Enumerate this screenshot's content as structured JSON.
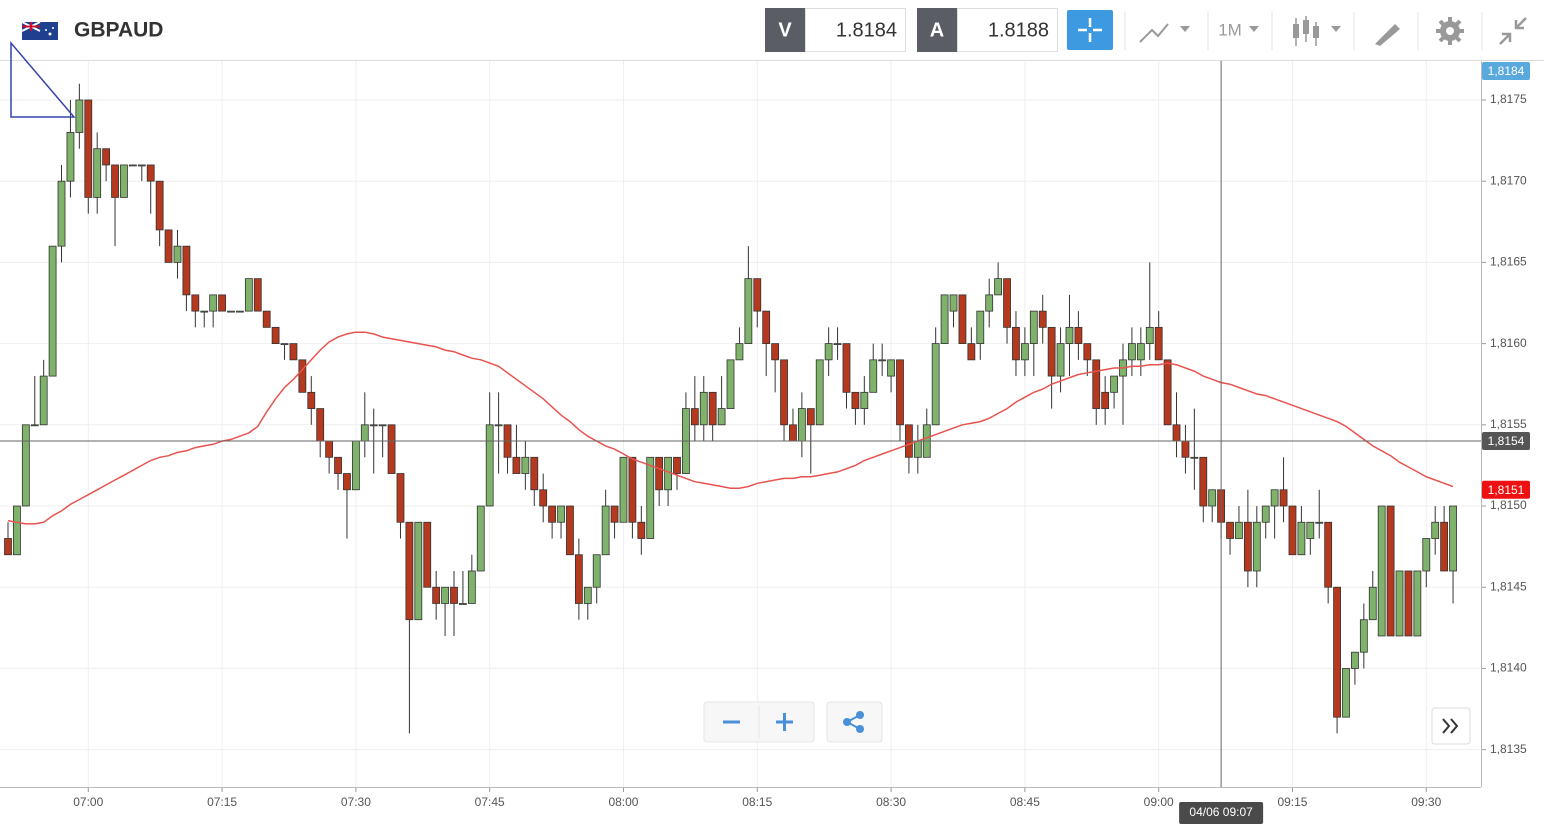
{
  "header": {
    "symbol": "GBPAUD",
    "bid_label": "V",
    "bid": "1.8184",
    "ask_label": "A",
    "ask": "1.8188",
    "timeframe": "1M"
  },
  "chart_data": {
    "type": "candlestick",
    "x": [
      "06:51",
      "06:52",
      "06:53",
      "06:54",
      "06:55",
      "06:56",
      "06:57",
      "06:58",
      "06:59",
      "07:00",
      "07:01",
      "07:02",
      "07:03",
      "07:04",
      "07:05",
      "07:06",
      "07:07",
      "07:08",
      "07:09",
      "07:10",
      "07:11",
      "07:12",
      "07:13",
      "07:14",
      "07:15",
      "07:16",
      "07:17",
      "07:18",
      "07:19",
      "07:20",
      "07:21",
      "07:22",
      "07:23",
      "07:24",
      "07:25",
      "07:26",
      "07:27",
      "07:28",
      "07:29",
      "07:30",
      "07:31",
      "07:32",
      "07:33",
      "07:34",
      "07:35",
      "07:36",
      "07:37",
      "07:38",
      "07:39",
      "07:40",
      "07:41",
      "07:42",
      "07:43",
      "07:44",
      "07:45",
      "07:46",
      "07:47",
      "07:48",
      "07:49",
      "07:50",
      "07:51",
      "07:52",
      "07:53",
      "07:54",
      "07:55",
      "07:56",
      "07:57",
      "07:58",
      "07:59",
      "08:00",
      "08:01",
      "08:02",
      "08:03",
      "08:04",
      "08:05",
      "08:06",
      "08:07",
      "08:08",
      "08:09",
      "08:10",
      "08:11",
      "08:12",
      "08:13",
      "08:14",
      "08:15",
      "08:16",
      "08:17",
      "08:18",
      "08:19",
      "08:20",
      "08:21",
      "08:22",
      "08:23",
      "08:24",
      "08:25",
      "08:26",
      "08:27",
      "08:28",
      "08:29",
      "08:30",
      "08:31",
      "08:32",
      "08:33",
      "08:34",
      "08:35",
      "08:36",
      "08:37",
      "08:38",
      "08:39",
      "08:40",
      "08:41",
      "08:42",
      "08:43",
      "08:44",
      "08:45",
      "08:46",
      "08:47",
      "08:48",
      "08:49",
      "08:50",
      "08:51",
      "08:52",
      "08:53",
      "08:54",
      "08:55",
      "08:56",
      "08:57",
      "08:58",
      "08:59",
      "09:00",
      "09:01",
      "09:02",
      "09:03",
      "09:04",
      "09:05",
      "09:06",
      "09:07",
      "09:08",
      "09:09",
      "09:10",
      "09:11",
      "09:12",
      "09:13",
      "09:14",
      "09:15",
      "09:16",
      "09:17",
      "09:18",
      "09:19",
      "09:20",
      "09:21",
      "09:22",
      "09:23",
      "09:24",
      "09:25",
      "09:26",
      "09:27",
      "09:28",
      "09:29",
      "09:30",
      "09:31",
      "09:32",
      "09:33"
    ],
    "open": [
      1.8148,
      1.8147,
      1.815,
      1.8155,
      1.8155,
      1.8158,
      1.8166,
      1.817,
      1.8173,
      1.8175,
      1.8169,
      1.8172,
      1.8171,
      1.8169,
      1.8171,
      1.8171,
      1.8171,
      1.817,
      1.8167,
      1.8165,
      1.8166,
      1.8163,
      1.8162,
      1.8162,
      1.8163,
      1.8162,
      1.8162,
      1.8162,
      1.8164,
      1.8162,
      1.8161,
      1.816,
      1.816,
      1.8159,
      1.8157,
      1.8156,
      1.8154,
      1.8153,
      1.8152,
      1.8151,
      1.8154,
      1.8155,
      1.8155,
      1.8155,
      1.8152,
      1.8149,
      1.8143,
      1.8149,
      1.8145,
      1.8144,
      1.8145,
      1.8144,
      1.8144,
      1.8146,
      1.815,
      1.8155,
      1.8155,
      1.8153,
      1.8152,
      1.8153,
      1.8151,
      1.815,
      1.8149,
      1.815,
      1.8147,
      1.8144,
      1.8145,
      1.8147,
      1.815,
      1.8149,
      1.8153,
      1.8149,
      1.8148,
      1.8153,
      1.8151,
      1.8153,
      1.8152,
      1.8156,
      1.8155,
      1.8157,
      1.8155,
      1.8156,
      1.8159,
      1.816,
      1.8164,
      1.8162,
      1.816,
      1.8159,
      1.8155,
      1.8154,
      1.8156,
      1.8155,
      1.8159,
      1.816,
      1.816,
      1.8157,
      1.8156,
      1.8157,
      1.8159,
      1.8158,
      1.8159,
      1.8155,
      1.8153,
      1.8153,
      1.8155,
      1.816,
      1.8162,
      1.8163,
      1.816,
      1.816,
      1.8162,
      1.8163,
      1.8164,
      1.8161,
      1.8159,
      1.816,
      1.8162,
      1.8161,
      1.8158,
      1.816,
      1.8161,
      1.816,
      1.8159,
      1.8157,
      1.8157,
      1.8158,
      1.8159,
      1.8159,
      1.816,
      1.8161,
      1.8159,
      1.8155,
      1.8154,
      1.8153,
      1.8153,
      1.815,
      1.8151,
      1.8149,
      1.8148,
      1.8149,
      1.8146,
      1.8149,
      1.815,
      1.8151,
      1.815,
      1.8147,
      1.8148,
      1.8149,
      1.8149,
      1.8145,
      1.8137,
      1.814,
      1.8141,
      1.8143,
      1.8142,
      1.815,
      1.8142,
      1.8146,
      1.8142,
      1.8146,
      1.8148,
      1.8149,
      1.8146
    ],
    "high": [
      1.8149,
      1.815,
      1.8155,
      1.8158,
      1.8159,
      1.8166,
      1.8171,
      1.8175,
      1.8176,
      1.8175,
      1.8173,
      1.8172,
      1.8171,
      1.8171,
      1.8171,
      1.8171,
      1.8171,
      1.817,
      1.8167,
      1.8167,
      1.8166,
      1.8163,
      1.8162,
      1.8163,
      1.8163,
      1.8162,
      1.8162,
      1.8164,
      1.8164,
      1.8162,
      1.8161,
      1.816,
      1.816,
      1.8159,
      1.8158,
      1.8156,
      1.8154,
      1.8153,
      1.8152,
      1.8154,
      1.8157,
      1.8156,
      1.8155,
      1.8155,
      1.8152,
      1.8149,
      1.8149,
      1.8149,
      1.8146,
      1.8145,
      1.8146,
      1.8146,
      1.8147,
      1.815,
      1.8157,
      1.8157,
      1.8155,
      1.8155,
      1.8154,
      1.8153,
      1.8152,
      1.815,
      1.815,
      1.815,
      1.8148,
      1.8145,
      1.8147,
      1.8151,
      1.815,
      1.8153,
      1.8153,
      1.815,
      1.8153,
      1.8153,
      1.8153,
      1.8153,
      1.8157,
      1.8158,
      1.8158,
      1.8157,
      1.8158,
      1.8159,
      1.8161,
      1.8166,
      1.8164,
      1.8162,
      1.816,
      1.8159,
      1.8156,
      1.8157,
      1.8156,
      1.8159,
      1.8161,
      1.8161,
      1.816,
      1.8157,
      1.8158,
      1.816,
      1.816,
      1.8159,
      1.8159,
      1.8155,
      1.8155,
      1.8156,
      1.8161,
      1.8163,
      1.8163,
      1.8163,
      1.8161,
      1.8162,
      1.8164,
      1.8165,
      1.8164,
      1.8162,
      1.8161,
      1.8162,
      1.8163,
      1.8161,
      1.8161,
      1.8163,
      1.8162,
      1.816,
      1.8159,
      1.8158,
      1.8158,
      1.816,
      1.8161,
      1.8161,
      1.8165,
      1.8162,
      1.8159,
      1.8157,
      1.8155,
      1.8156,
      1.8153,
      1.8151,
      1.8151,
      1.8149,
      1.815,
      1.8151,
      1.815,
      1.815,
      1.8151,
      1.8153,
      1.815,
      1.815,
      1.8149,
      1.8151,
      1.8149,
      1.8145,
      1.814,
      1.8141,
      1.8144,
      1.8146,
      1.815,
      1.815,
      1.8146,
      1.8146,
      1.8146,
      1.8148,
      1.815,
      1.815,
      1.815
    ],
    "low": [
      1.8147,
      1.8147,
      1.815,
      1.8155,
      1.8155,
      1.8158,
      1.8165,
      1.8169,
      1.8172,
      1.8168,
      1.8168,
      1.817,
      1.8166,
      1.8169,
      1.8171,
      1.817,
      1.8168,
      1.8166,
      1.8165,
      1.8164,
      1.8162,
      1.8161,
      1.8161,
      1.8161,
      1.8162,
      1.8162,
      1.8162,
      1.8162,
      1.8162,
      1.8161,
      1.816,
      1.8159,
      1.8159,
      1.8157,
      1.8155,
      1.8153,
      1.8152,
      1.8151,
      1.8148,
      1.8151,
      1.8153,
      1.8152,
      1.8153,
      1.8152,
      1.8148,
      1.8136,
      1.8143,
      1.8145,
      1.8143,
      1.8142,
      1.8142,
      1.8144,
      1.8144,
      1.8146,
      1.815,
      1.8152,
      1.8152,
      1.8152,
      1.8151,
      1.815,
      1.8149,
      1.8148,
      1.8148,
      1.8147,
      1.8143,
      1.8143,
      1.8144,
      1.8147,
      1.8148,
      1.8149,
      1.8148,
      1.8147,
      1.8148,
      1.815,
      1.815,
      1.8151,
      1.8152,
      1.8154,
      1.8154,
      1.8154,
      1.8155,
      1.8156,
      1.8159,
      1.816,
      1.8161,
      1.8158,
      1.8157,
      1.8154,
      1.8154,
      1.8153,
      1.8152,
      1.8155,
      1.8158,
      1.8159,
      1.8156,
      1.8155,
      1.8155,
      1.8157,
      1.8158,
      1.8157,
      1.8154,
      1.8152,
      1.8152,
      1.8153,
      1.8155,
      1.816,
      1.8161,
      1.816,
      1.8159,
      1.8159,
      1.8161,
      1.8163,
      1.816,
      1.8158,
      1.8158,
      1.8158,
      1.816,
      1.8156,
      1.8157,
      1.8158,
      1.8159,
      1.8158,
      1.8155,
      1.8155,
      1.8156,
      1.8155,
      1.8158,
      1.8158,
      1.8159,
      1.8159,
      1.8155,
      1.8153,
      1.8152,
      1.8151,
      1.8149,
      1.8149,
      1.8148,
      1.8147,
      1.8148,
      1.8145,
      1.8145,
      1.8148,
      1.8148,
      1.8149,
      1.8147,
      1.8147,
      1.8147,
      1.8148,
      1.8144,
      1.8136,
      1.8137,
      1.8139,
      1.814,
      1.8143,
      1.8142,
      1.8142,
      1.8142,
      1.8142,
      1.8142,
      1.8145,
      1.8147,
      1.8146,
      1.8144
    ],
    "close": [
      1.8147,
      1.815,
      1.8155,
      1.8155,
      1.8158,
      1.8166,
      1.817,
      1.8173,
      1.8175,
      1.8169,
      1.8172,
      1.8171,
      1.8169,
      1.8171,
      1.8171,
      1.8171,
      1.817,
      1.8167,
      1.8165,
      1.8166,
      1.8163,
      1.8162,
      1.8162,
      1.8163,
      1.8162,
      1.8162,
      1.8162,
      1.8164,
      1.8162,
      1.8161,
      1.816,
      1.816,
      1.8159,
      1.8157,
      1.8156,
      1.8154,
      1.8153,
      1.8152,
      1.8151,
      1.8154,
      1.8155,
      1.8155,
      1.8155,
      1.8152,
      1.8149,
      1.8143,
      1.8149,
      1.8145,
      1.8144,
      1.8145,
      1.8144,
      1.8144,
      1.8146,
      1.815,
      1.8155,
      1.8155,
      1.8153,
      1.8152,
      1.8153,
      1.8151,
      1.815,
      1.8149,
      1.815,
      1.8147,
      1.8144,
      1.8145,
      1.8147,
      1.815,
      1.8149,
      1.8153,
      1.8149,
      1.8148,
      1.8153,
      1.8151,
      1.8153,
      1.8152,
      1.8156,
      1.8155,
      1.8157,
      1.8155,
      1.8156,
      1.8159,
      1.816,
      1.8164,
      1.8162,
      1.816,
      1.8159,
      1.8155,
      1.8154,
      1.8156,
      1.8155,
      1.8159,
      1.816,
      1.816,
      1.8157,
      1.8156,
      1.8157,
      1.8159,
      1.8159,
      1.8159,
      1.8155,
      1.8153,
      1.8154,
      1.8155,
      1.816,
      1.8163,
      1.8163,
      1.816,
      1.8159,
      1.8162,
      1.8163,
      1.8164,
      1.8161,
      1.8159,
      1.816,
      1.8162,
      1.8161,
      1.8158,
      1.816,
      1.8161,
      1.816,
      1.8159,
      1.8156,
      1.8156,
      1.8158,
      1.8159,
      1.816,
      1.816,
      1.8161,
      1.8159,
      1.8155,
      1.8154,
      1.8153,
      1.8153,
      1.815,
      1.8151,
      1.8149,
      1.8148,
      1.8149,
      1.8146,
      1.8149,
      1.815,
      1.8151,
      1.815,
      1.8147,
      1.8149,
      1.8149,
      1.8149,
      1.8145,
      1.8137,
      1.814,
      1.8141,
      1.8143,
      1.8145,
      1.815,
      1.8142,
      1.8146,
      1.8142,
      1.8146,
      1.8148,
      1.8149,
      1.8146,
      1.815
    ],
    "up_color": "#7fb26a",
    "down_color": "#b5391f",
    "ma": {
      "color": "#e8534f",
      "values": [
        1.81491,
        1.8149,
        1.81489,
        1.81489,
        1.8149,
        1.81494,
        1.81497,
        1.81501,
        1.81504,
        1.81507,
        1.8151,
        1.81513,
        1.81516,
        1.81519,
        1.81522,
        1.81525,
        1.81528,
        1.8153,
        1.81531,
        1.81533,
        1.81534,
        1.81536,
        1.81537,
        1.81538,
        1.8154,
        1.81541,
        1.81543,
        1.81545,
        1.81549,
        1.81558,
        1.81566,
        1.81573,
        1.81578,
        1.81584,
        1.8159,
        1.81596,
        1.81601,
        1.81604,
        1.81606,
        1.81607,
        1.81607,
        1.81606,
        1.81604,
        1.81603,
        1.81602,
        1.81601,
        1.816,
        1.81599,
        1.81598,
        1.81596,
        1.81595,
        1.81593,
        1.81591,
        1.8159,
        1.81588,
        1.81586,
        1.81582,
        1.81578,
        1.81574,
        1.8157,
        1.81566,
        1.81561,
        1.81556,
        1.81552,
        1.81547,
        1.81543,
        1.8154,
        1.81537,
        1.81535,
        1.81532,
        1.81529,
        1.81527,
        1.81525,
        1.81523,
        1.81521,
        1.81519,
        1.81517,
        1.81515,
        1.81514,
        1.81513,
        1.81512,
        1.81511,
        1.81511,
        1.81512,
        1.81514,
        1.81515,
        1.81516,
        1.81517,
        1.81517,
        1.81518,
        1.81518,
        1.81519,
        1.8152,
        1.81521,
        1.81523,
        1.81525,
        1.81528,
        1.8153,
        1.81532,
        1.81534,
        1.81536,
        1.81538,
        1.8154,
        1.81542,
        1.81544,
        1.81546,
        1.81548,
        1.8155,
        1.81551,
        1.81552,
        1.81554,
        1.81557,
        1.8156,
        1.81564,
        1.81567,
        1.8157,
        1.81572,
        1.81575,
        1.81577,
        1.81579,
        1.81581,
        1.81582,
        1.81583,
        1.81584,
        1.81585,
        1.81585,
        1.81586,
        1.81586,
        1.81587,
        1.81587,
        1.81588,
        1.81587,
        1.81585,
        1.81583,
        1.8158,
        1.81578,
        1.81576,
        1.81575,
        1.81573,
        1.81571,
        1.81569,
        1.81568,
        1.81566,
        1.81564,
        1.81562,
        1.8156,
        1.81558,
        1.81556,
        1.81554,
        1.81552,
        1.81549,
        1.81545,
        1.81541,
        1.81537,
        1.81534,
        1.81531,
        1.81527,
        1.81524,
        1.81521,
        1.81518,
        1.81516,
        1.81514,
        1.81512
      ]
    },
    "ylim": [
      1.81327,
      1.81774
    ],
    "yticks": [
      {
        "value": 1.8135,
        "label": "1,8135"
      },
      {
        "value": 1.814,
        "label": "1,8140"
      },
      {
        "value": 1.8145,
        "label": "1,8145"
      },
      {
        "value": 1.815,
        "label": "1,8150"
      },
      {
        "value": 1.8155,
        "label": "1,8155"
      },
      {
        "value": 1.816,
        "label": "1,8160"
      },
      {
        "value": 1.8165,
        "label": "1,8165"
      },
      {
        "value": 1.817,
        "label": "1,8170"
      },
      {
        "value": 1.8175,
        "label": "1,8175"
      }
    ],
    "xticks": [
      "07:00",
      "07:15",
      "07:30",
      "07:45",
      "08:00",
      "08:15",
      "08:30",
      "08:45",
      "09:00",
      "09:15",
      "09:30"
    ],
    "grid": true,
    "price_tags": [
      {
        "value": 1.8184,
        "label": "1,8184",
        "color": "#5aa9dd"
      },
      {
        "value": 1.8154,
        "label": "1,8154",
        "color": "#555555"
      },
      {
        "value": 1.8151,
        "label": "1,8151",
        "color": "#ee1111"
      }
    ],
    "crosshair": {
      "x": "09:07",
      "x_label": "04/06 09:07",
      "y": 1.8154
    }
  }
}
